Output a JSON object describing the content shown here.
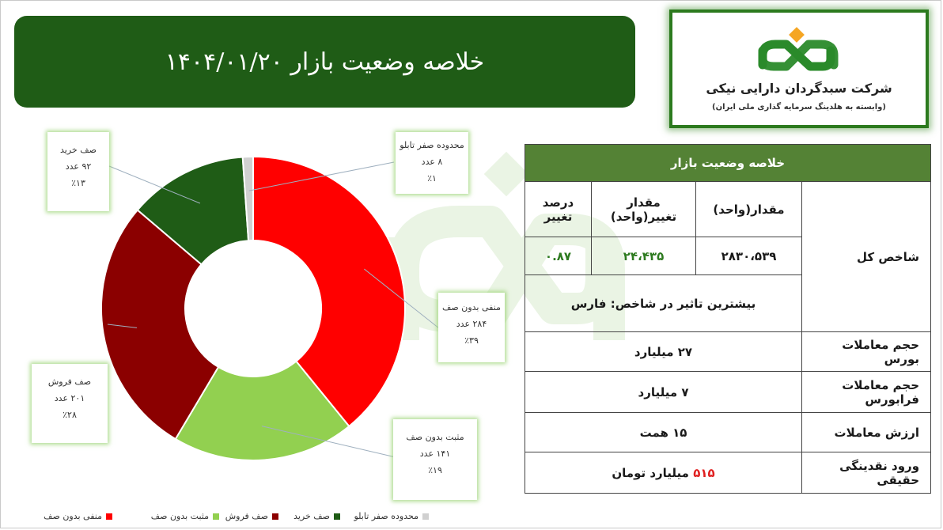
{
  "header": {
    "title": "خلاصه وضعیت بازار ۱۴۰۴/۰۱/۲۰"
  },
  "logo": {
    "company_name": "شرکت سبدگردان دارایی نیکی",
    "company_sub": "(وابسته به هلدینگ سرمایه گذاری ملی ایران)"
  },
  "chart_data": {
    "type": "pie",
    "variant": "donut",
    "categories": [
      "منفی بدون صف",
      "مثبت بدون صف",
      "صف فروش",
      "صف خرید",
      "محدوده صفر تابلو"
    ],
    "values": [
      284,
      141,
      201,
      92,
      8
    ],
    "percents": [
      "٪۳۹",
      "٪۱۹",
      "٪۲۸",
      "٪۱۳",
      "٪۱"
    ],
    "value_labels": [
      "۲۸۴ عدد",
      "۱۴۱ عدد",
      "۲۰۱ عدد",
      "۹۲ عدد",
      "۸ عدد"
    ],
    "colors": [
      "#ff0000",
      "#92d050",
      "#8b0000",
      "#1f5c16",
      "#d0d0d0"
    ],
    "legend_placement": "bottom"
  },
  "legend": [
    {
      "label": "منفی بدون صف",
      "color": "#ff0000"
    },
    {
      "label": "مثبت بدون صف",
      "color": "#92d050"
    },
    {
      "label": "صف فروش",
      "color": "#8b0000"
    },
    {
      "label": "صف خرید",
      "color": "#1f5c16"
    },
    {
      "label": "محدوده صفر تابلو",
      "color": "#d0d0d0"
    }
  ],
  "table": {
    "title": "خلاصه وضعیت بازار",
    "index": {
      "label": "شاخص کل",
      "col_value": "مقدار(واحد)",
      "col_change": "مقدار تغییر(واحد)",
      "col_percent": "درصد تغییر",
      "value": "۲۸۳۰،۵۳۹",
      "change": "۲۴،۴۳۵",
      "percent": "۰.۸۷",
      "impact": "بیشترین تاثیر در شاخص: فارس"
    },
    "rows": [
      {
        "label": "حجم معاملات بورس",
        "value": "۲۷ میلیارد"
      },
      {
        "label": "حجم معاملات فرابورس",
        "value": "۷ میلیارد"
      },
      {
        "label": "ارزش معاملات",
        "value": "۱۵ همت"
      }
    ],
    "liquidity": {
      "label": "ورود نقدینگی حقیقی",
      "amount": "۵۱۵",
      "unit": "میلیارد تومان"
    }
  }
}
